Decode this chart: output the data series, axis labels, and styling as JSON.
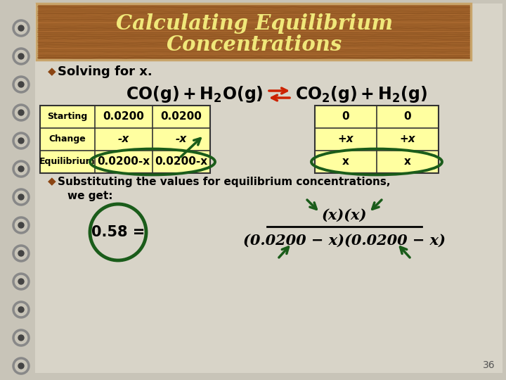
{
  "title_line1": "Calculating Equilibrium",
  "title_line2": "Concentrations",
  "title_bg_light": "#C8A46A",
  "title_bg_mid": "#8B5A2B",
  "title_bg_dark": "#6B3A1A",
  "title_text_color": "#F0E87A",
  "title_border_color": "#C8A46A",
  "slide_bg_color": "#C8C4B8",
  "bullet_color": "#8B4513",
  "bullet1": "Solving for x.",
  "table_bg": "#FFFFA0",
  "table_border": "#333333",
  "row_labels": [
    "Starting",
    "Change",
    "Equilibrium"
  ],
  "col1": [
    "0.0200",
    "-x",
    "0.0200-x"
  ],
  "col2": [
    "0.0200",
    "-x",
    "0.0200-x"
  ],
  "col3": [
    "0",
    "+x",
    "x"
  ],
  "col4": [
    "0",
    "+x",
    "x"
  ],
  "circle_color": "#1A5C1A",
  "arrow_color": "#1A5C1A",
  "bullet2_line1": "Substituting the values for equilibrium concentrations,",
  "bullet2_line2": "we get:",
  "circle_value": "0.58 =",
  "fraction_num": "(x)(x)",
  "fraction_den": "(0.0200 − x)(0.0200 − x)",
  "page_num": "36",
  "arrow_react_color": "#CC2200",
  "spiral_outer": "#888888",
  "spiral_inner": "#444444"
}
